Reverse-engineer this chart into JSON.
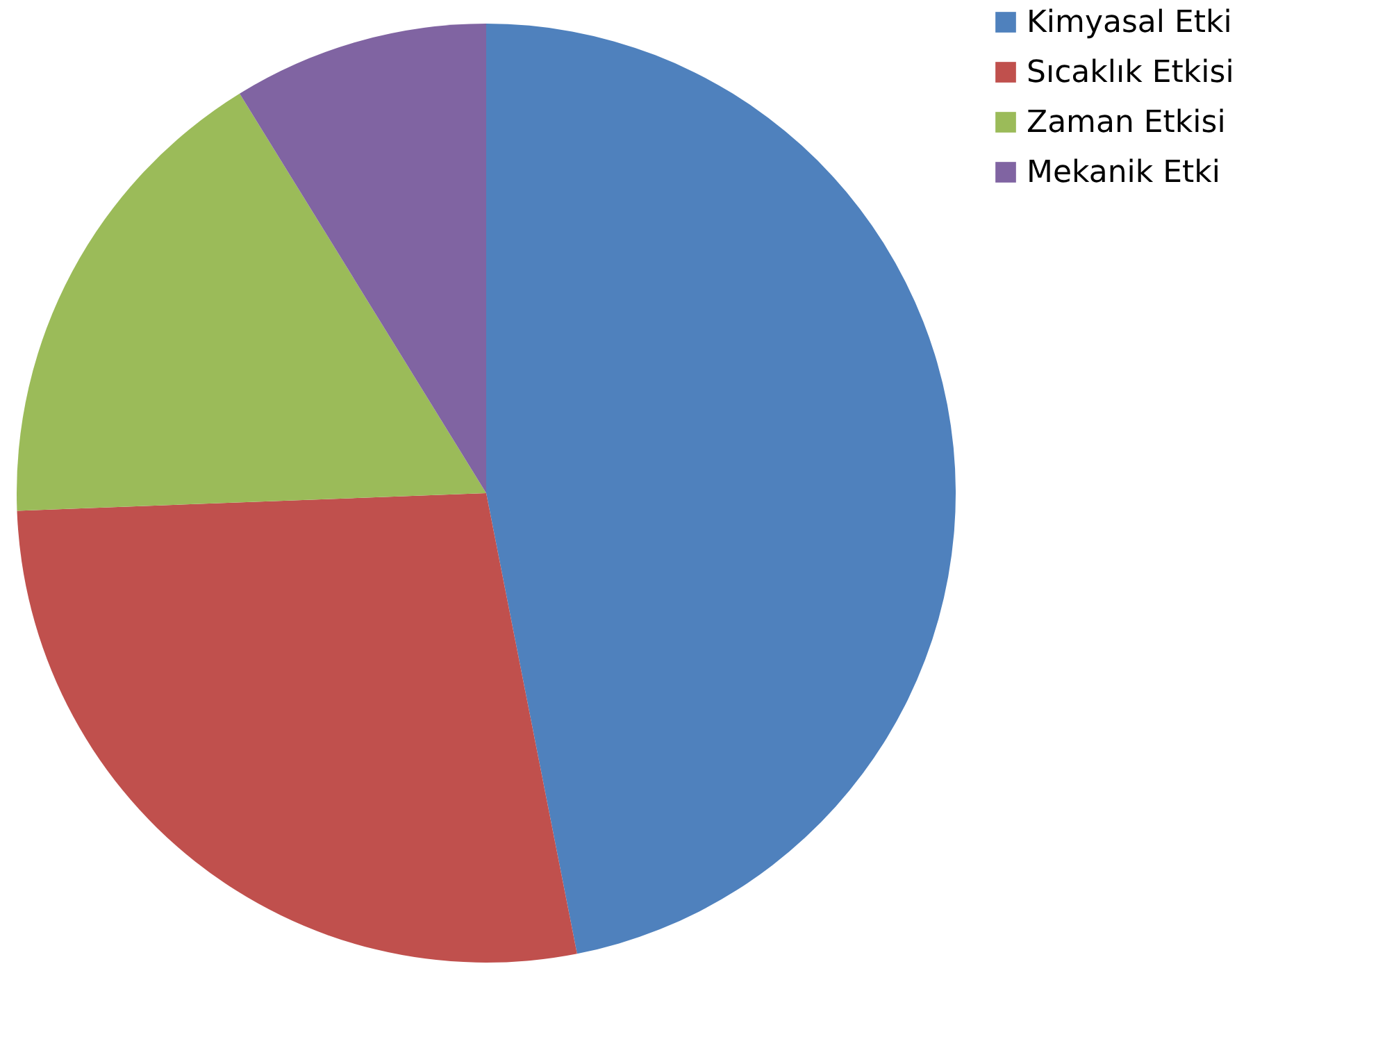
{
  "chart_data": {
    "type": "pie",
    "categories": [
      "Kimyasal Etki",
      "Sıcaklık Etkisi",
      "Zaman Etkisi",
      "Mekanik Etki"
    ],
    "values": [
      46.9,
      27.5,
      16.8,
      8.8
    ],
    "colors": [
      "#4f81bd",
      "#c0504d",
      "#9bbb59",
      "#8064a2"
    ],
    "legend": "right"
  }
}
